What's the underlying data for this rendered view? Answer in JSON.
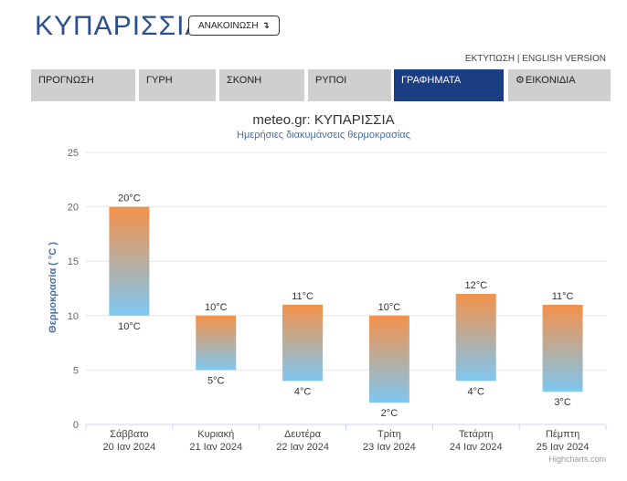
{
  "header": {
    "title": "ΚΥΠΑΡΙΣΣΙΑ",
    "announce_label": "ΑΝΑΚΟΙΝΩΣΗ",
    "announce_arrow": "↴",
    "print_link": "ΕΚΤΥΠΩΣΗ",
    "separator": "|",
    "english_link": "ENGLISH VERSION"
  },
  "tabs": [
    {
      "label": "ΠΡΟΓΝΩΣΗ",
      "active": false
    },
    {
      "label": "ΓΥΡΗ",
      "active": false
    },
    {
      "label": "ΣΚΟΝΗ",
      "active": false
    },
    {
      "label": "ΡΥΠΟΙ",
      "active": false
    },
    {
      "label": "ΓΡΑΦΗΜΑΤΑ",
      "active": true
    },
    {
      "label": "ΕΙΚΟΝΙΔΙΑ",
      "active": false,
      "icon": "gear-icon"
    }
  ],
  "colors": {
    "accent": "#1b3d82",
    "title_blue": "#2b4f8e",
    "bar_top": "#f4924a",
    "bar_bottom": "#7ec7f1"
  },
  "chart_data": {
    "type": "bar",
    "subtype": "columnrange",
    "title": "meteo.gr: ΚΥΠΑΡΙΣΣΙΑ",
    "subtitle": "Ημερήσιες διακυμάνσεις θερμοκρασίας",
    "ylabel": "Θερμοκρασία ( °C )",
    "xlabel": "",
    "ylim": [
      0,
      25
    ],
    "yticks": [
      0,
      5,
      10,
      15,
      20,
      25
    ],
    "grid": true,
    "categories": [
      [
        "Σάββατο",
        "20 Ιαν 2024"
      ],
      [
        "Κυριακή",
        "21 Ιαν 2024"
      ],
      [
        "Δευτέρα",
        "22 Ιαν 2024"
      ],
      [
        "Τρίτη",
        "23 Ιαν 2024"
      ],
      [
        "Τετάρτη",
        "24 Ιαν 2024"
      ],
      [
        "Πέμπτη",
        "25 Ιαν 2024"
      ]
    ],
    "low": [
      10,
      5,
      4,
      2,
      4,
      3
    ],
    "high": [
      20,
      10,
      11,
      10,
      12,
      11
    ],
    "unit": "°C",
    "credits": "Highcharts.com"
  }
}
